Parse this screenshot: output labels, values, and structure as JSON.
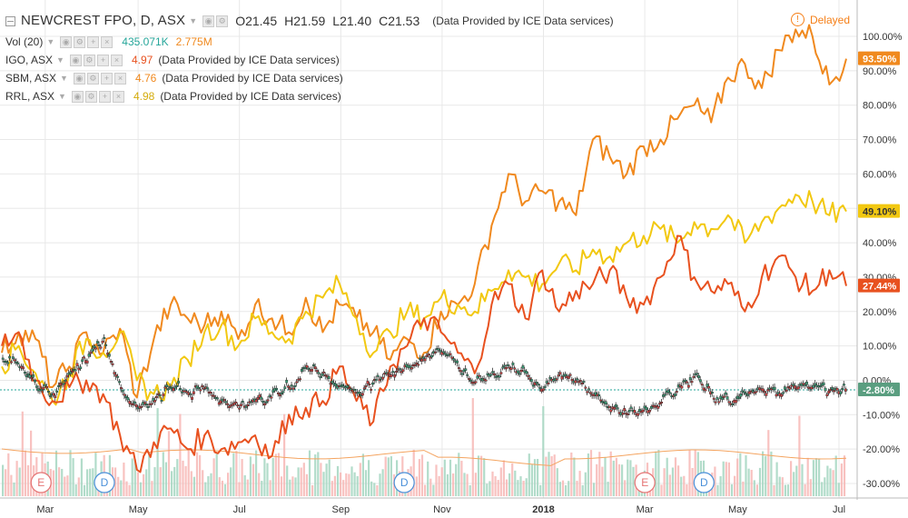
{
  "legend": {
    "main": {
      "symbol": "NEWCREST FPO, D, ASX",
      "o": "O21.45",
      "h": "H21.59",
      "l": "L21.40",
      "c": "C21.53",
      "provider": "(Data Provided by ICE Data services)"
    },
    "vol": {
      "label": "Vol (20)",
      "value1": "435.071K",
      "value2": "2.775M"
    },
    "compares": [
      {
        "symbol": "IGO, ASX",
        "value": "4.97",
        "provider": "(Data Provided by ICE Data services)",
        "color": "#e8511f"
      },
      {
        "symbol": "SBM, ASX",
        "value": "4.76",
        "provider": "(Data Provided by ICE Data services)",
        "color": "#f0891e"
      },
      {
        "symbol": "RRL, ASX",
        "value": "4.98",
        "provider": "(Data Provided by ICE Data services)",
        "color": "#f2c811"
      }
    ]
  },
  "status": {
    "delayed": "Delayed",
    "warn_glyph": "!"
  },
  "colors": {
    "up": "#26a69a",
    "down": "#ef5350",
    "igo": "#e8511f",
    "sbm": "#f0891e",
    "rrl": "#f2c811",
    "grid": "#e8e8e8",
    "ma": "#f4a460",
    "newcrest_label": "#5a9e80"
  },
  "chart_data": {
    "type": "line",
    "yaxis": {
      "min": -30,
      "max": 100,
      "unit": "%",
      "ticks": [
        "100.00%",
        "90.00%",
        "80.00%",
        "70.00%",
        "60.00%",
        "50.00%",
        "40.00%",
        "30.00%",
        "20.00%",
        "10.00%",
        "0.00%",
        "-10.00%",
        "-20.00%",
        "-30.00%"
      ],
      "tick_values": [
        100,
        90,
        80,
        70,
        60,
        50,
        40,
        30,
        20,
        10,
        0,
        -10,
        -20,
        -30
      ]
    },
    "xaxis": {
      "ticks": [
        "Mar",
        "May",
        "Jul",
        "Sep",
        "Nov",
        "2018",
        "Mar",
        "May",
        "Jul"
      ],
      "tick_positions": [
        0.06,
        0.17,
        0.29,
        0.41,
        0.53,
        0.65,
        0.77,
        0.88,
        1.0
      ]
    },
    "series": [
      {
        "name": "SBM, ASX",
        "key": "sbm",
        "last_label": "93.50%",
        "x": [
          0,
          0.02,
          0.04,
          0.06,
          0.08,
          0.1,
          0.12,
          0.14,
          0.16,
          0.18,
          0.2,
          0.22,
          0.24,
          0.26,
          0.28,
          0.3,
          0.32,
          0.34,
          0.36,
          0.38,
          0.4,
          0.42,
          0.44,
          0.46,
          0.48,
          0.5,
          0.52,
          0.54,
          0.56,
          0.58,
          0.6,
          0.62,
          0.64,
          0.66,
          0.68,
          0.7,
          0.72,
          0.74,
          0.76,
          0.78,
          0.8,
          0.82,
          0.84,
          0.86,
          0.88,
          0.9,
          0.92,
          0.94,
          0.96,
          0.98,
          1.0
        ],
        "y": [
          8,
          14,
          12,
          -2,
          4,
          14,
          8,
          15,
          -5,
          12,
          22,
          18,
          16,
          20,
          12,
          22,
          18,
          14,
          24,
          14,
          22,
          18,
          14,
          6,
          12,
          8,
          20,
          22,
          28,
          45,
          60,
          52,
          55,
          52,
          48,
          70,
          65,
          60,
          68,
          70,
          76,
          80,
          75,
          88,
          92,
          85,
          96,
          102,
          100,
          86,
          93.5
        ]
      },
      {
        "name": "RRL, ASX",
        "key": "rrl",
        "last_label": "49.10%",
        "x": [
          0,
          0.02,
          0.04,
          0.06,
          0.08,
          0.1,
          0.12,
          0.14,
          0.16,
          0.18,
          0.2,
          0.22,
          0.24,
          0.26,
          0.28,
          0.3,
          0.32,
          0.34,
          0.36,
          0.38,
          0.4,
          0.42,
          0.44,
          0.46,
          0.48,
          0.5,
          0.52,
          0.54,
          0.56,
          0.58,
          0.6,
          0.62,
          0.64,
          0.66,
          0.68,
          0.7,
          0.72,
          0.74,
          0.76,
          0.78,
          0.8,
          0.82,
          0.84,
          0.86,
          0.88,
          0.9,
          0.92,
          0.94,
          0.96,
          0.98,
          1.0
        ],
        "y": [
          4,
          10,
          2,
          -6,
          2,
          12,
          8,
          14,
          0,
          -4,
          -2,
          6,
          14,
          16,
          10,
          18,
          14,
          12,
          20,
          24,
          28,
          18,
          8,
          14,
          20,
          18,
          24,
          22,
          20,
          26,
          32,
          30,
          28,
          34,
          32,
          38,
          36,
          40,
          42,
          44,
          40,
          46,
          44,
          48,
          40,
          46,
          50,
          54,
          52,
          48,
          49.1
        ]
      },
      {
        "name": "IGO, ASX",
        "key": "igo",
        "last_label": "27.44%",
        "x": [
          0,
          0.02,
          0.04,
          0.06,
          0.08,
          0.1,
          0.12,
          0.14,
          0.16,
          0.18,
          0.2,
          0.22,
          0.24,
          0.26,
          0.28,
          0.3,
          0.32,
          0.34,
          0.36,
          0.38,
          0.4,
          0.42,
          0.44,
          0.46,
          0.48,
          0.5,
          0.52,
          0.54,
          0.56,
          0.58,
          0.6,
          0.62,
          0.64,
          0.66,
          0.68,
          0.7,
          0.72,
          0.74,
          0.76,
          0.78,
          0.8,
          0.82,
          0.84,
          0.86,
          0.88,
          0.9,
          0.92,
          0.94,
          0.96,
          0.98,
          1.0
        ],
        "y": [
          10,
          14,
          0,
          -6,
          -2,
          0,
          -4,
          -16,
          -26,
          -18,
          -14,
          -20,
          -16,
          -20,
          -18,
          -16,
          -22,
          -10,
          -8,
          -6,
          4,
          -6,
          -12,
          4,
          10,
          18,
          14,
          8,
          2,
          22,
          28,
          18,
          32,
          20,
          26,
          28,
          32,
          24,
          22,
          30,
          42,
          30,
          26,
          28,
          20,
          30,
          36,
          30,
          26,
          32,
          27.44
        ]
      },
      {
        "name": "NEWCREST FPO, D, ASX",
        "key": "ncm",
        "last_label": "-2.80%",
        "x": [
          0,
          0.02,
          0.04,
          0.06,
          0.08,
          0.1,
          0.12,
          0.14,
          0.16,
          0.18,
          0.2,
          0.22,
          0.24,
          0.26,
          0.28,
          0.3,
          0.32,
          0.34,
          0.36,
          0.38,
          0.4,
          0.42,
          0.44,
          0.46,
          0.48,
          0.5,
          0.52,
          0.54,
          0.56,
          0.58,
          0.6,
          0.62,
          0.64,
          0.66,
          0.68,
          0.7,
          0.72,
          0.74,
          0.76,
          0.78,
          0.8,
          0.82,
          0.84,
          0.86,
          0.88,
          0.9,
          0.92,
          0.94,
          0.96,
          0.98,
          1.0
        ],
        "y": [
          6,
          4,
          -2,
          -4,
          2,
          6,
          12,
          -2,
          -8,
          -6,
          -2,
          -4,
          -2,
          -6,
          -8,
          -6,
          -4,
          -2,
          4,
          2,
          -2,
          -4,
          0,
          2,
          4,
          6,
          8,
          4,
          0,
          2,
          4,
          2,
          -2,
          2,
          0,
          -4,
          -8,
          -10,
          -8,
          -6,
          -2,
          2,
          -4,
          -6,
          -4,
          -2,
          -4,
          -2,
          -2,
          -3,
          -2.8
        ]
      }
    ],
    "volume_ma_label": "",
    "event_markers": [
      {
        "letter": "E",
        "type": "earnings",
        "x": 0.025
      },
      {
        "letter": "D",
        "type": "dividend",
        "x": 0.1
      },
      {
        "letter": "D",
        "type": "dividend",
        "x": 0.455
      },
      {
        "letter": "E",
        "type": "earnings",
        "x": 0.74
      },
      {
        "letter": "D",
        "type": "dividend",
        "x": 0.81
      }
    ]
  }
}
